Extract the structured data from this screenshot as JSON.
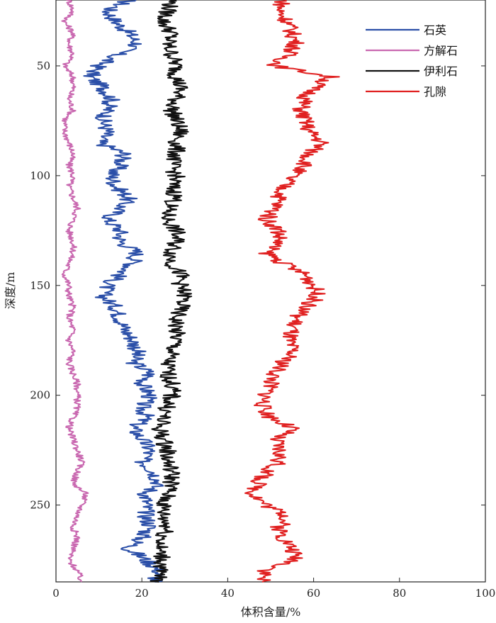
{
  "chart_data": {
    "type": "line",
    "orientation": "depth-log",
    "xlabel": "体积含量/%",
    "ylabel": "深度/m",
    "xlim": [
      0,
      100
    ],
    "ylim": [
      20,
      285
    ],
    "y_inverted": true,
    "x_ticks": [
      0,
      20,
      40,
      60,
      80,
      100
    ],
    "y_ticks": [
      50,
      100,
      150,
      200,
      250
    ],
    "grid": false,
    "legend_position": "top-right",
    "series": [
      {
        "name": "石英",
        "color": "#2b4fa8",
        "depth": [
          20,
          25,
          30,
          35,
          40,
          45,
          50,
          55,
          60,
          65,
          70,
          75,
          80,
          85,
          90,
          95,
          100,
          105,
          110,
          115,
          120,
          125,
          130,
          135,
          140,
          145,
          150,
          155,
          160,
          165,
          170,
          175,
          180,
          185,
          190,
          195,
          200,
          205,
          210,
          215,
          220,
          225,
          230,
          235,
          240,
          245,
          250,
          255,
          260,
          265,
          270,
          275,
          280,
          285
        ],
        "values": [
          17,
          12,
          14,
          17,
          19,
          14,
          10,
          8,
          11,
          13,
          12,
          11,
          12,
          10,
          16,
          15,
          13,
          14,
          17,
          15,
          12,
          15,
          15,
          19,
          18,
          15,
          12,
          11,
          14,
          15,
          16,
          18,
          19,
          18,
          22,
          20,
          22,
          20,
          21,
          18,
          20,
          22,
          20,
          23,
          24,
          21,
          21,
          21,
          22,
          20,
          17,
          21,
          24,
          23
        ]
      },
      {
        "name": "方解石",
        "color": "#c968b0",
        "depth": [
          20,
          25,
          30,
          35,
          40,
          45,
          50,
          55,
          60,
          65,
          70,
          75,
          80,
          85,
          90,
          95,
          100,
          105,
          110,
          115,
          120,
          125,
          130,
          135,
          140,
          145,
          150,
          155,
          160,
          165,
          170,
          175,
          180,
          185,
          190,
          195,
          200,
          205,
          210,
          215,
          220,
          225,
          230,
          235,
          240,
          245,
          250,
          255,
          260,
          265,
          270,
          275,
          280,
          285
        ],
        "values": [
          3,
          4,
          2,
          4,
          3,
          4,
          2,
          4,
          4,
          3,
          4,
          2,
          2,
          3,
          4,
          3,
          4,
          3,
          4,
          5,
          4,
          3,
          4,
          4,
          3,
          2,
          3,
          3,
          4,
          3,
          4,
          3,
          4,
          3,
          4,
          5,
          5,
          5,
          4,
          3,
          4,
          5,
          6,
          5,
          4,
          7,
          6,
          5,
          4,
          5,
          4,
          3,
          5,
          6
        ]
      },
      {
        "name": "伊利石",
        "color": "#111111",
        "depth": [
          20,
          25,
          30,
          35,
          40,
          45,
          50,
          55,
          60,
          65,
          70,
          75,
          80,
          85,
          90,
          95,
          100,
          105,
          110,
          115,
          120,
          125,
          130,
          135,
          140,
          145,
          150,
          155,
          160,
          165,
          170,
          175,
          180,
          185,
          190,
          195,
          200,
          205,
          210,
          215,
          220,
          225,
          230,
          235,
          240,
          245,
          250,
          255,
          260,
          265,
          270,
          275,
          280,
          285
        ],
        "values": [
          27,
          26,
          25,
          27,
          26,
          27,
          28,
          28,
          29,
          28,
          27,
          28,
          29,
          28,
          28,
          27,
          28,
          27,
          28,
          26,
          26,
          28,
          28,
          27,
          27,
          29,
          29,
          30,
          29,
          28,
          28,
          28,
          27,
          26,
          26,
          27,
          27,
          26,
          25,
          24,
          25,
          26,
          26,
          27,
          27,
          26,
          25,
          25,
          26,
          25,
          24,
          25,
          24,
          24
        ]
      },
      {
        "name": "孔隙",
        "color": "#e02020",
        "depth": [
          20,
          25,
          30,
          35,
          40,
          45,
          50,
          55,
          60,
          65,
          70,
          75,
          80,
          85,
          90,
          95,
          100,
          105,
          110,
          115,
          120,
          125,
          130,
          135,
          140,
          145,
          150,
          155,
          160,
          165,
          170,
          175,
          180,
          185,
          190,
          195,
          200,
          205,
          210,
          215,
          220,
          225,
          230,
          235,
          240,
          245,
          250,
          255,
          260,
          265,
          270,
          275,
          280,
          285
        ],
        "values": [
          53,
          52,
          54,
          55,
          56,
          54,
          51,
          64,
          60,
          58,
          57,
          58,
          59,
          62,
          59,
          58,
          55,
          53,
          52,
          51,
          49,
          52,
          52,
          49,
          53,
          58,
          60,
          61,
          58,
          56,
          55,
          54,
          55,
          53,
          51,
          50,
          49,
          48,
          50,
          55,
          51,
          52,
          52,
          49,
          47,
          46,
          49,
          54,
          52,
          53,
          55,
          56,
          49,
          48
        ]
      }
    ]
  }
}
